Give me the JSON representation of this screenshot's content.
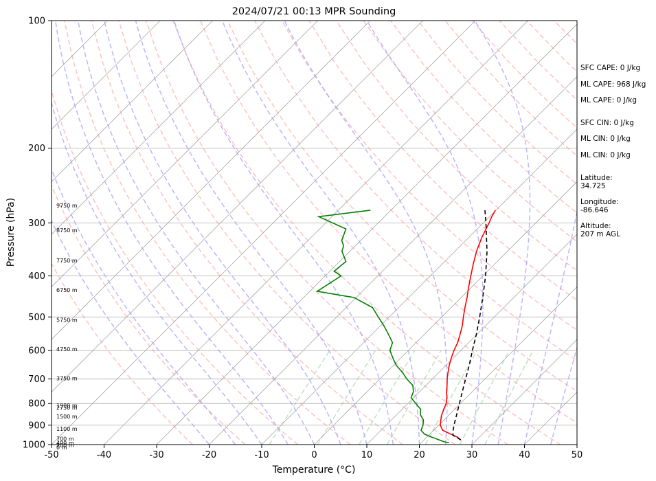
{
  "chart_data": {
    "type": "line",
    "title": "2024/07/21 00:13 MPR Sounding",
    "xlabel": "Temperature (°C)",
    "ylabel": "Pressure (hPa)",
    "xlim": [
      -50,
      50
    ],
    "ylim": [
      1000,
      100
    ],
    "y_scale": "log",
    "x_ticks": [
      -50,
      -40,
      -30,
      -20,
      -10,
      0,
      10,
      20,
      30,
      40,
      50
    ],
    "y_ticks": [
      1000,
      900,
      800,
      700,
      600,
      500,
      400,
      300,
      200,
      100
    ],
    "grid": true,
    "colors": {
      "temperature": "#ff0000",
      "dewpoint": "#008000",
      "parcel": "#000000",
      "isotherm": "#aaaaaa",
      "dry_adiabat": "#ff9999",
      "moist_adiabat": "#9999ff",
      "mixing_ratio": "#99cc99"
    },
    "series": [
      {
        "key": "temperature",
        "pressure": [
          975,
          960,
          945,
          925,
          900,
          875,
          850,
          825,
          800,
          775,
          750,
          725,
          700,
          675,
          650,
          625,
          600,
          575,
          550,
          525,
          500,
          475,
          450,
          425,
          400,
          375,
          350,
          325,
          300,
          290,
          280
        ],
        "values": [
          27.0,
          25.8,
          24.0,
          21.7,
          20.3,
          19.4,
          18.6,
          17.9,
          17.3,
          16.3,
          15.1,
          14.0,
          12.8,
          11.7,
          10.6,
          9.6,
          8.7,
          7.9,
          6.8,
          5.6,
          4.1,
          2.6,
          1.1,
          -0.6,
          -2.3,
          -4.1,
          -5.9,
          -7.5,
          -8.9,
          -9.6,
          -10.1
        ]
      },
      {
        "key": "dewpoint",
        "pressure": [
          990,
          985,
          975,
          960,
          945,
          925,
          900,
          875,
          850,
          825,
          800,
          775,
          750,
          725,
          700,
          675,
          650,
          625,
          600,
          575,
          550,
          525,
          500,
          475,
          450,
          435,
          400,
          390,
          370,
          350,
          340,
          330,
          310,
          290,
          280
        ],
        "values": [
          25.3,
          24.2,
          22.9,
          20.9,
          19.0,
          17.6,
          17.0,
          16.1,
          14.5,
          13.5,
          11.5,
          9.5,
          8.8,
          7.5,
          5.1,
          3.0,
          0.5,
          -1.5,
          -3.5,
          -4.5,
          -6.8,
          -9.3,
          -12.1,
          -15.0,
          -20.4,
          -28.6,
          -27.0,
          -29.2,
          -28.8,
          -31.5,
          -32.2,
          -33.6,
          -35.0,
          -42.5,
          -33.9
        ]
      },
      {
        "key": "parcel",
        "pressure": [
          975,
          950,
          925,
          900,
          850,
          800,
          750,
          700,
          650,
          600,
          550,
          500,
          450,
          400,
          350,
          300,
          280
        ],
        "values": [
          27.0,
          24.6,
          23.7,
          22.9,
          21.4,
          19.8,
          18.1,
          16.3,
          14.4,
          12.2,
          9.9,
          7.2,
          4.1,
          0.5,
          -3.9,
          -9.5,
          -12.1
        ]
      }
    ],
    "height_labels": [
      "9750 m",
      "8750 m",
      "7750 m",
      "6750 m",
      "5750 m",
      "4750 m",
      "3750 m",
      "2750 m",
      "1900 m",
      "1500 m",
      "1100 m",
      "700 m",
      "400 m",
      "200 m",
      "0 m"
    ],
    "height_label_pressures": [
      273,
      312,
      368,
      432,
      508,
      595,
      698,
      817,
      808,
      858,
      918,
      969,
      990,
      1003,
      1015
    ],
    "side_annotations": [
      "SFC CAPE: 0 J/kg",
      "ML CAPE: 968 J/kg",
      "ML CAPE: 0 J/kg",
      "SFC CIN: 0 J/kg",
      "ML CIN: 0 J/kg",
      "ML CIN: 0 J/kg",
      "Latitude:",
      "34.725",
      "Longitude:",
      "-86.646",
      "Altitude:",
      "207 m AGL"
    ]
  }
}
